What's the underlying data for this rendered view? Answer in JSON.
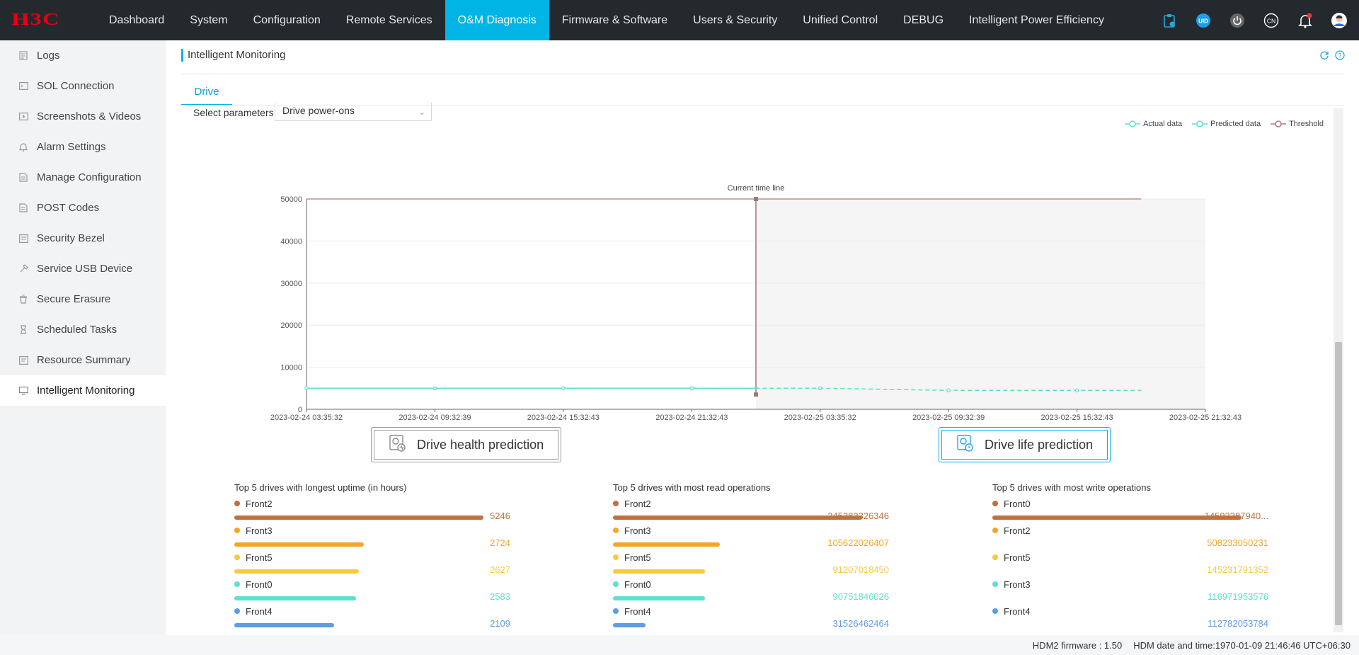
{
  "brand": {
    "logo_text": "H3C",
    "logo_color": "#e60012"
  },
  "nav": {
    "items": [
      "Dashboard",
      "System",
      "Configuration",
      "Remote Services",
      "O&M Diagnosis",
      "Firmware & Software",
      "Users & Security",
      "Unified Control",
      "DEBUG",
      "Intelligent Power Efficiency"
    ],
    "active": "O&M Diagnosis",
    "uid_label": "UID",
    "lang_label": "CN"
  },
  "sidebar": {
    "items": [
      {
        "label": "Logs",
        "icon": "logs-icon"
      },
      {
        "label": "SOL Connection",
        "icon": "terminal-icon"
      },
      {
        "label": "Screenshots & Videos",
        "icon": "video-icon"
      },
      {
        "label": "Alarm Settings",
        "icon": "bell-icon"
      },
      {
        "label": "Manage Configuration",
        "icon": "document-icon"
      },
      {
        "label": "POST Codes",
        "icon": "document-icon"
      },
      {
        "label": "Security Bezel",
        "icon": "bezel-icon"
      },
      {
        "label": "Service USB Device",
        "icon": "usb-icon"
      },
      {
        "label": "Secure Erasure",
        "icon": "erase-icon"
      },
      {
        "label": "Scheduled Tasks",
        "icon": "hourglass-icon"
      },
      {
        "label": "Resource Summary",
        "icon": "summary-icon"
      },
      {
        "label": "Intelligent Monitoring",
        "icon": "monitor-icon"
      }
    ],
    "active": "Intelligent Monitoring"
  },
  "page": {
    "title": "Intelligent Monitoring",
    "tab": "Drive",
    "param_label": "Select parameters",
    "param_value": "Drive power-ons"
  },
  "chart_data": {
    "type": "line",
    "legend": [
      "Actual data",
      "Predicted data",
      "Threshold"
    ],
    "annotation": "Current time line",
    "x_ticks": [
      "2023-02-24 03:35:32",
      "2023-02-24 09:32:39",
      "2023-02-24 15:32:43",
      "2023-02-24 21:32:43",
      "2023-02-25 03:35:32",
      "2023-02-25 09:32:39",
      "2023-02-25 15:32:43",
      "2023-02-25 21:32:43"
    ],
    "y_ticks": [
      0,
      10000,
      20000,
      30000,
      40000,
      50000
    ],
    "ylim": [
      0,
      50000
    ],
    "threshold": 50000,
    "series": [
      {
        "name": "Actual data",
        "x_index": [
          0,
          1,
          2,
          3,
          3.5
        ],
        "values": [
          5000,
          5000,
          5000,
          5000,
          5000
        ]
      },
      {
        "name": "Predicted data",
        "x_index": [
          3,
          4,
          5,
          6,
          6.5
        ],
        "values": [
          5000,
          5000,
          4500,
          4500,
          4500
        ]
      }
    ],
    "current_time_index": 3.5,
    "colors": {
      "actual": "#5ee0d0",
      "predicted": "#5ee0d0",
      "threshold": "#b07a7a",
      "current": "#9c7a7a"
    }
  },
  "buttons": {
    "health": "Drive health prediction",
    "life": "Drive life prediction"
  },
  "tops": [
    {
      "title": "Top 5 drives with longest uptime (in hours)",
      "rows": [
        {
          "name": "Front2",
          "value": "5246",
          "ratio": 1.0,
          "color": "#c07040"
        },
        {
          "name": "Front3",
          "value": "2724",
          "ratio": 0.52,
          "color": "#f5a623"
        },
        {
          "name": "Front5",
          "value": "2627",
          "ratio": 0.5,
          "color": "#f8c93e"
        },
        {
          "name": "Front0",
          "value": "2583",
          "ratio": 0.49,
          "color": "#5ee0d0"
        },
        {
          "name": "Front4",
          "value": "2109",
          "ratio": 0.4,
          "color": "#5b9de8"
        }
      ]
    },
    {
      "title": "Top 5 drives with most read operations",
      "rows": [
        {
          "name": "Front2",
          "value": "245283326346",
          "ratio": 1.0,
          "color": "#c07040"
        },
        {
          "name": "Front3",
          "value": "105622026407",
          "ratio": 0.43,
          "color": "#f5a623"
        },
        {
          "name": "Front5",
          "value": "91207018450",
          "ratio": 0.37,
          "color": "#f8c93e"
        },
        {
          "name": "Front0",
          "value": "90751846026",
          "ratio": 0.37,
          "color": "#5ee0d0"
        },
        {
          "name": "Front4",
          "value": "31526462464",
          "ratio": 0.13,
          "color": "#5b9de8"
        }
      ]
    },
    {
      "title": "Top 5 drives with most write operations",
      "rows": [
        {
          "name": "Front0",
          "value": "14593287940...",
          "ratio": 1.0,
          "color": "#c07040"
        },
        {
          "name": "Front2",
          "value": "508233050231",
          "ratio": 0.0,
          "color": "#f5a623"
        },
        {
          "name": "Front5",
          "value": "145231791352",
          "ratio": 0.0,
          "color": "#f8c93e"
        },
        {
          "name": "Front3",
          "value": "116971953576",
          "ratio": 0.0,
          "color": "#5ee0d0"
        },
        {
          "name": "Front4",
          "value": "112782053784",
          "ratio": 0.0,
          "color": "#5b9de8"
        }
      ]
    }
  ],
  "status": {
    "firmware": "HDM2 firmware : 1.50",
    "datetime": "HDM date and time:1970-01-09 21:46:46 UTC+06:30"
  }
}
